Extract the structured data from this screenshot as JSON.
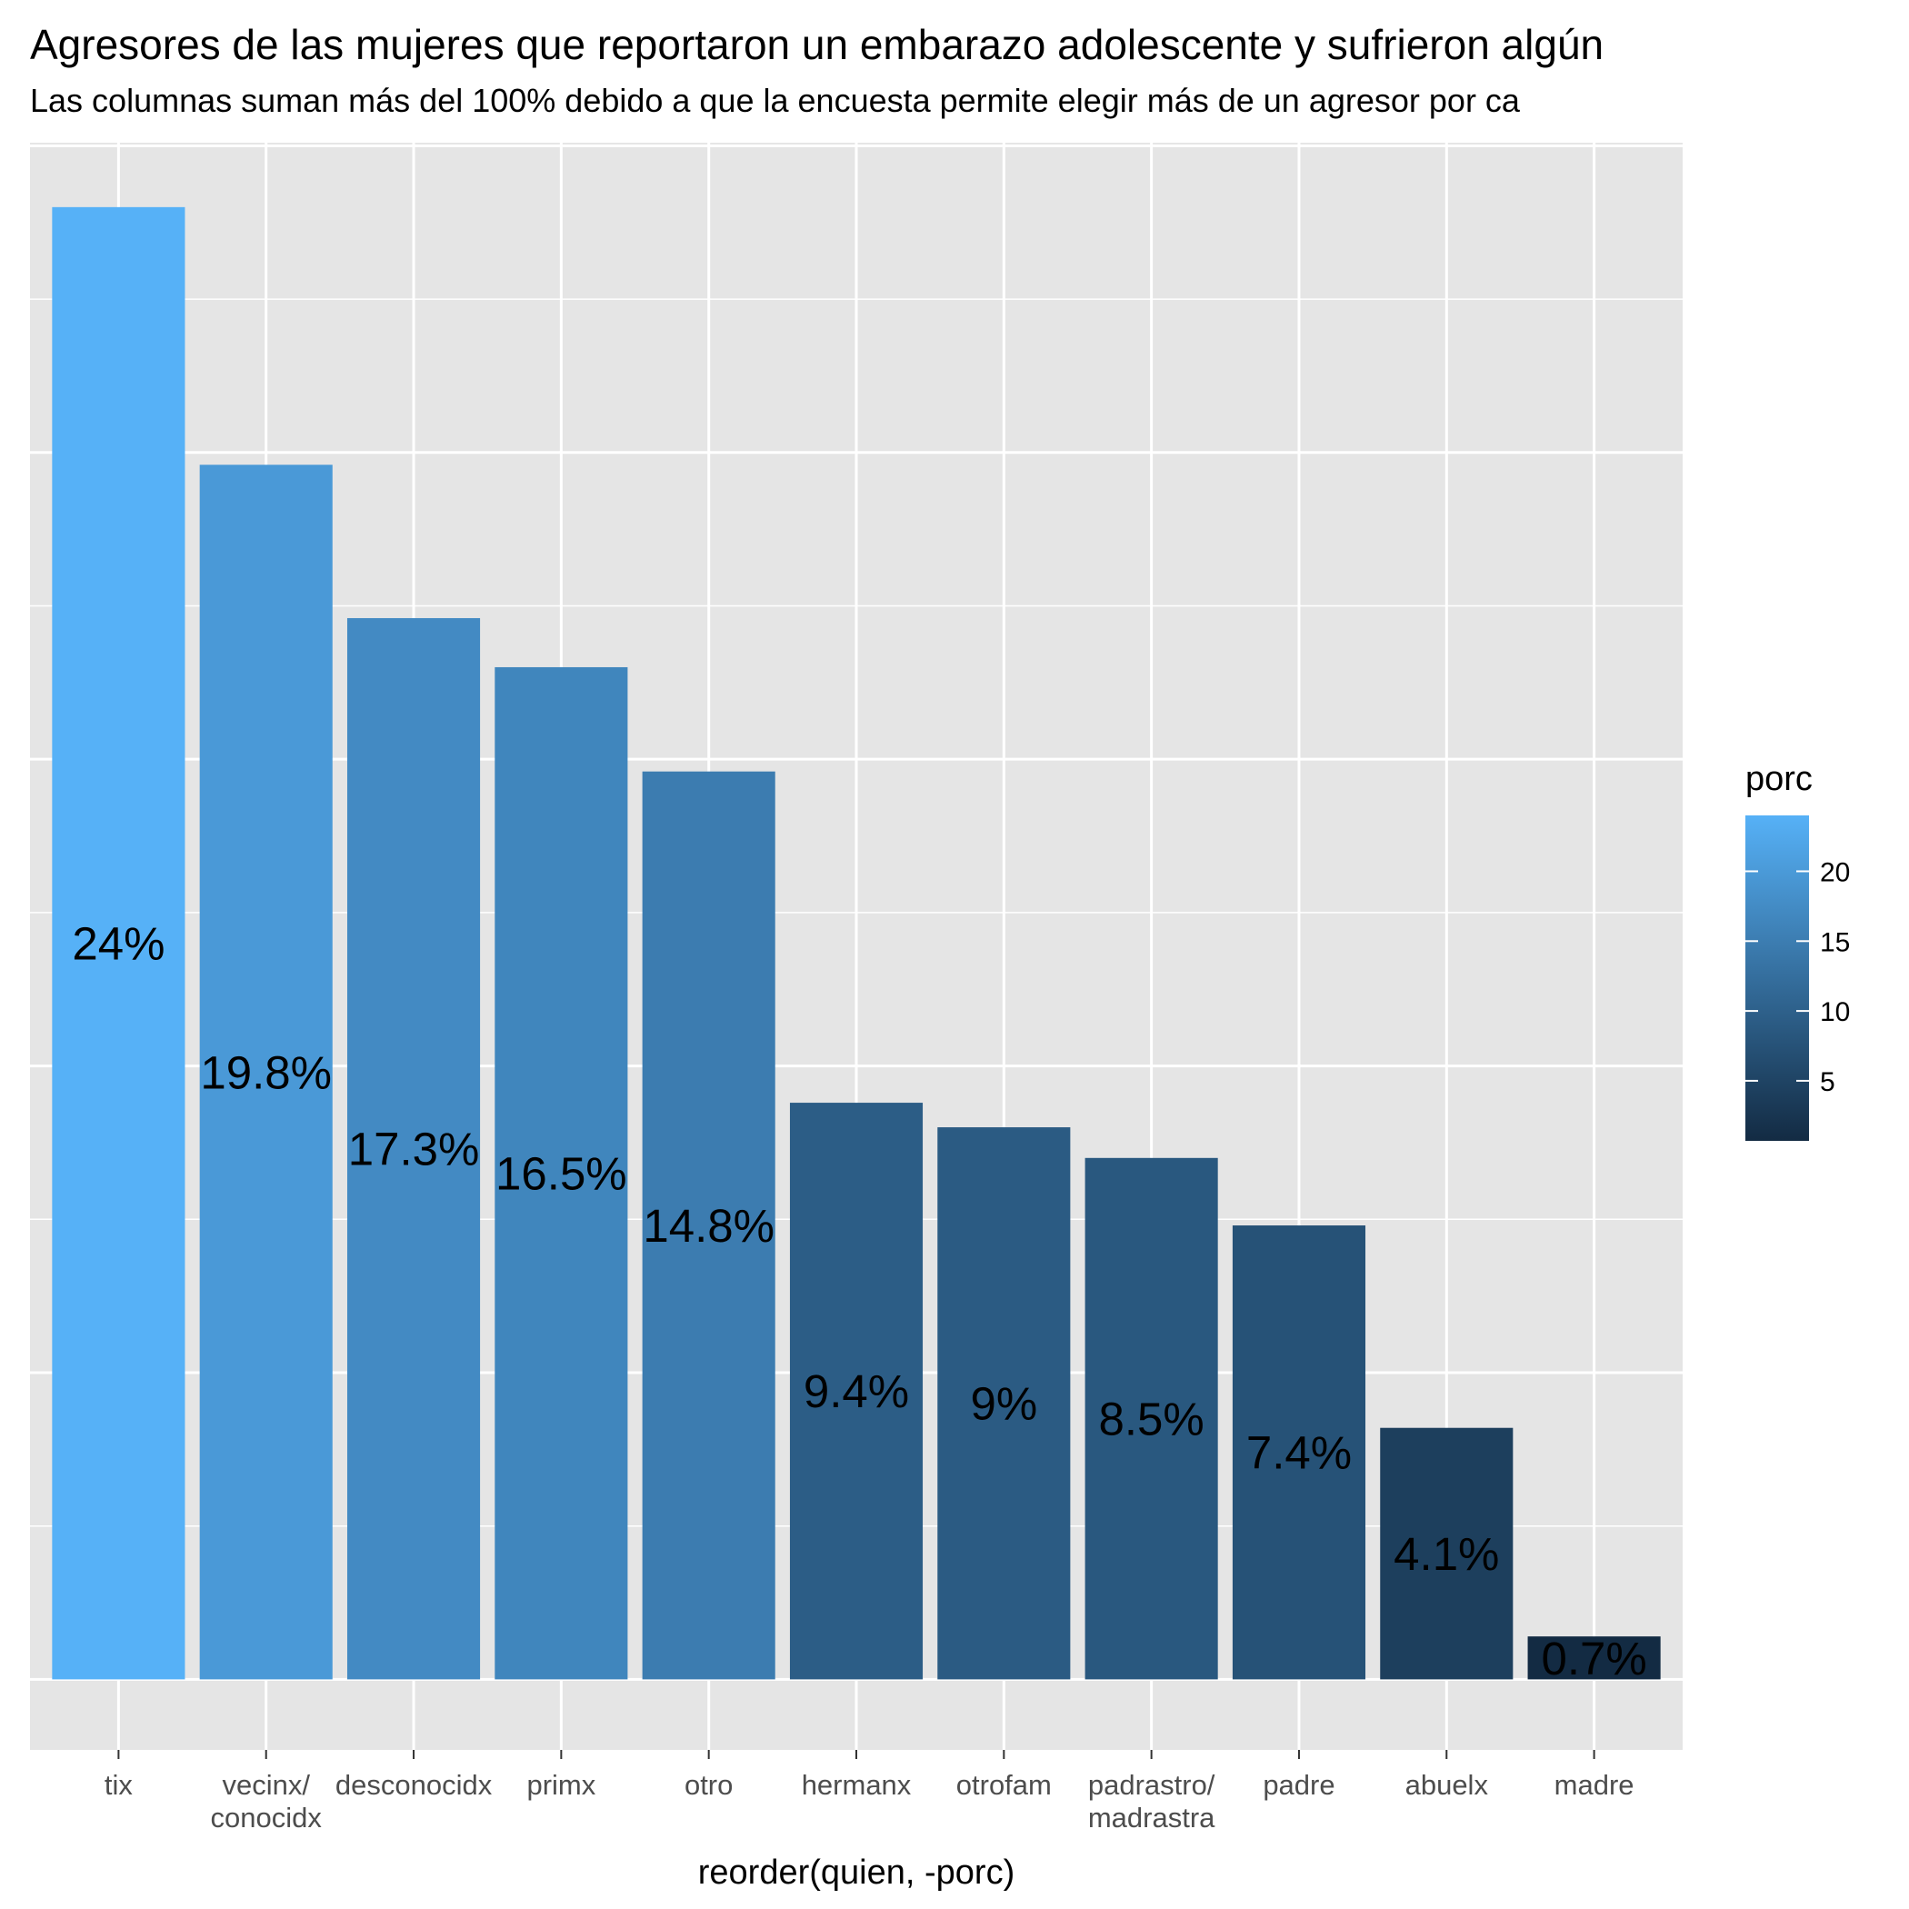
{
  "chart_data": {
    "type": "bar",
    "title": "Agresores de las mujeres que reportaron un embarazo adolescente y sufrieron algún",
    "subtitle": "Las columnas suman más del 100% debido a que la encuesta permite elegir más de un agresor por ca",
    "xlabel": "reorder(quien, -porc)",
    "ylabel": "",
    "categories": [
      [
        "tix"
      ],
      [
        "vecinx/",
        "conocidx"
      ],
      [
        "desconocidx"
      ],
      [
        "primx"
      ],
      [
        "otro"
      ],
      [
        "hermanx"
      ],
      [
        "otrofam"
      ],
      [
        "padrastro/",
        "madrastra"
      ],
      [
        "padre"
      ],
      [
        "abuelx"
      ],
      [
        "madre"
      ]
    ],
    "values": [
      24,
      19.8,
      17.3,
      16.5,
      14.8,
      9.4,
      9,
      8.5,
      7.4,
      4.1,
      0.7
    ],
    "data_labels": [
      "24%",
      "19.8%",
      "17.3%",
      "16.5%",
      "14.8%",
      "9.4%",
      "9%",
      "8.5%",
      "7.4%",
      "4.1%",
      "0.7%"
    ],
    "ylim": [
      -1.15,
      25.05
    ],
    "y_axis_labels_shown": false,
    "grid": true,
    "legend": {
      "title": "porc",
      "position": "right",
      "ticks": [
        5,
        10,
        15,
        20
      ],
      "range": [
        0.7,
        24
      ],
      "color_low": "#132B43",
      "color_high": "#56B1F7"
    },
    "panel_background": "#E5E5E5",
    "grid_color": "#FFFFFF"
  }
}
